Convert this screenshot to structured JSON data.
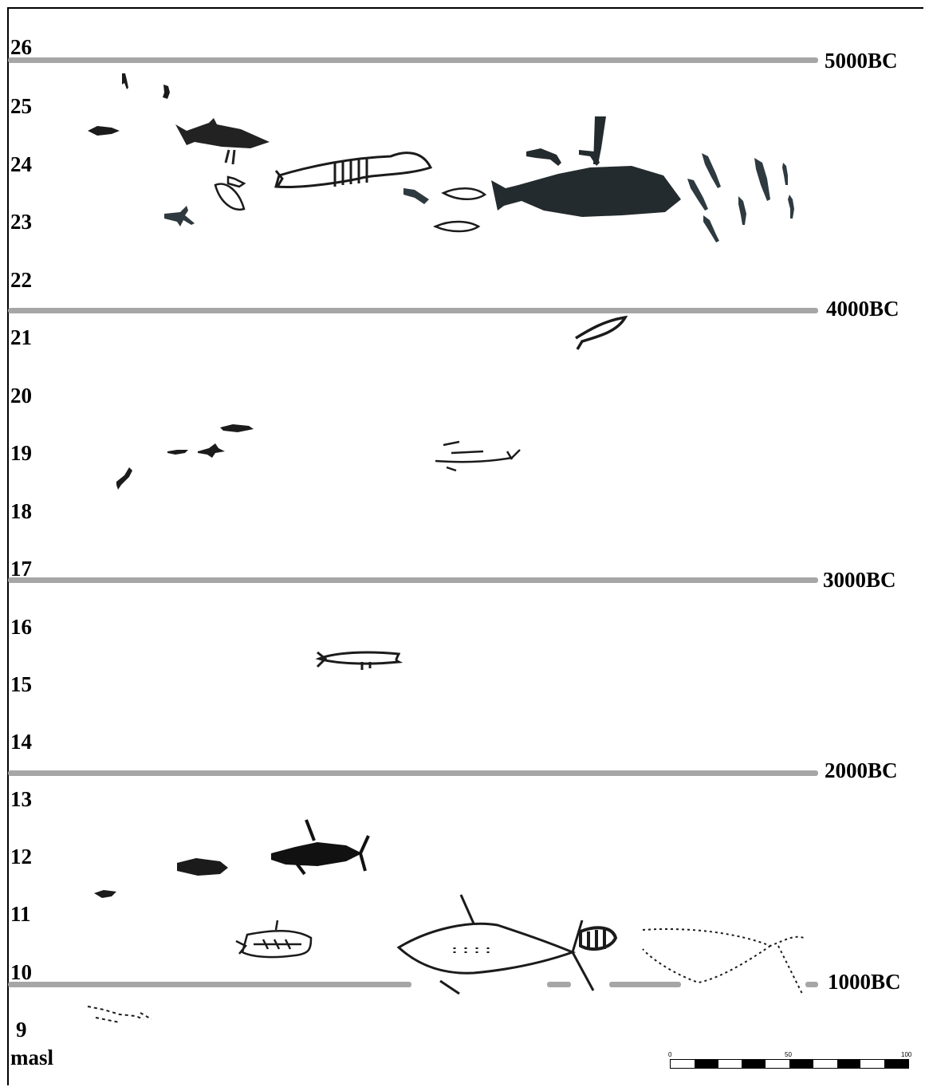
{
  "y_axis": {
    "unit": "masl",
    "ticks": [
      "26",
      "25",
      "24",
      "23",
      "22",
      "21",
      "20",
      "19",
      "18",
      "17",
      "16",
      "15",
      "14",
      "13",
      "12",
      "11",
      "10",
      "9"
    ]
  },
  "periods": [
    "5000BC",
    "4000BC",
    "3000BC",
    "2000BC",
    "1000BC"
  ],
  "scale_bar": {
    "labels": [
      "0",
      "50",
      "100"
    ],
    "colors": [
      "#ffffff",
      "#000000"
    ]
  },
  "colors": {
    "period_line": "#a6a6a6",
    "figure_dark": "#1b1b1b",
    "figure_slate": "#2e3a40"
  },
  "figures_description_icons": [
    "rock-carving-figures"
  ]
}
